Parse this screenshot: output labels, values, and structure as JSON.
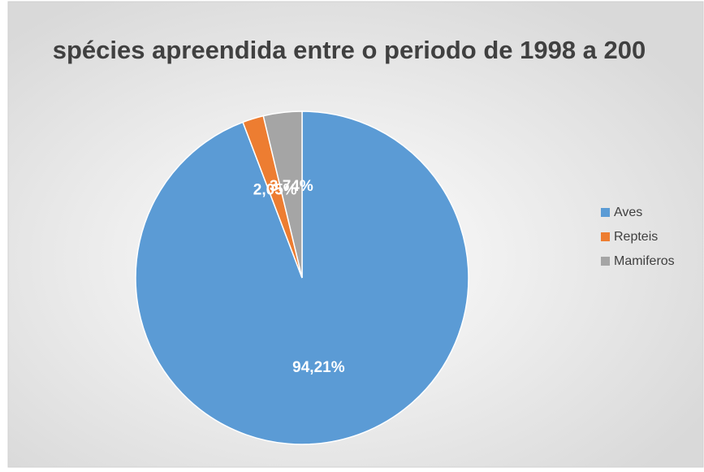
{
  "chart_data": {
    "type": "pie",
    "title": "spécies apreendida entre o periodo de 1998 a 200",
    "categories": [
      "Aves",
      "Repteis",
      "Mamiferos"
    ],
    "values": [
      94.21,
      2.05,
      3.74
    ],
    "value_labels": [
      "94,21%",
      "2,05%",
      "3,74%"
    ],
    "colors": [
      "#5b9bd5",
      "#ed7d31",
      "#a5a5a5"
    ],
    "legend": "right"
  }
}
